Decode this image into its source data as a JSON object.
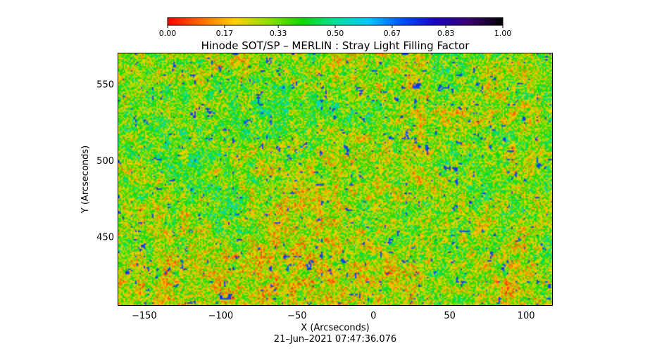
{
  "chart_data": {
    "type": "heatmap",
    "title": "Hinode SOT/SP – MERLIN : Stray Light Filling Factor",
    "xlabel": "X (Arcseconds)",
    "ylabel": "Y (Arcseconds)",
    "timestamp": "21–Jun–2021 07:47:36.076",
    "xlim": [
      -167,
      117
    ],
    "ylim": [
      405,
      570
    ],
    "x_ticks": [
      -150,
      -100,
      -50,
      0,
      50,
      100
    ],
    "x_tick_labels": [
      "−150",
      "−100",
      "−50",
      "0",
      "50",
      "100"
    ],
    "y_ticks": [
      450,
      500,
      550
    ],
    "y_tick_labels": [
      "450",
      "500",
      "550"
    ],
    "colorbar": {
      "colormap": "rainbow-to-black",
      "range": [
        0,
        1
      ],
      "ticks": [
        0.0,
        0.17,
        0.33,
        0.5,
        0.67,
        0.83,
        1.0
      ],
      "tick_labels": [
        "0.00",
        "0.17",
        "0.33",
        "0.50",
        "0.67",
        "0.83",
        "1.00"
      ],
      "orientation": "horizontal",
      "placement": "top"
    },
    "field_distribution": {
      "typical_range": [
        0.1,
        0.5
      ],
      "dominant": "green (~0.33–0.40)",
      "sparse_high_values": "blue patches (~0.7–0.8)"
    }
  }
}
